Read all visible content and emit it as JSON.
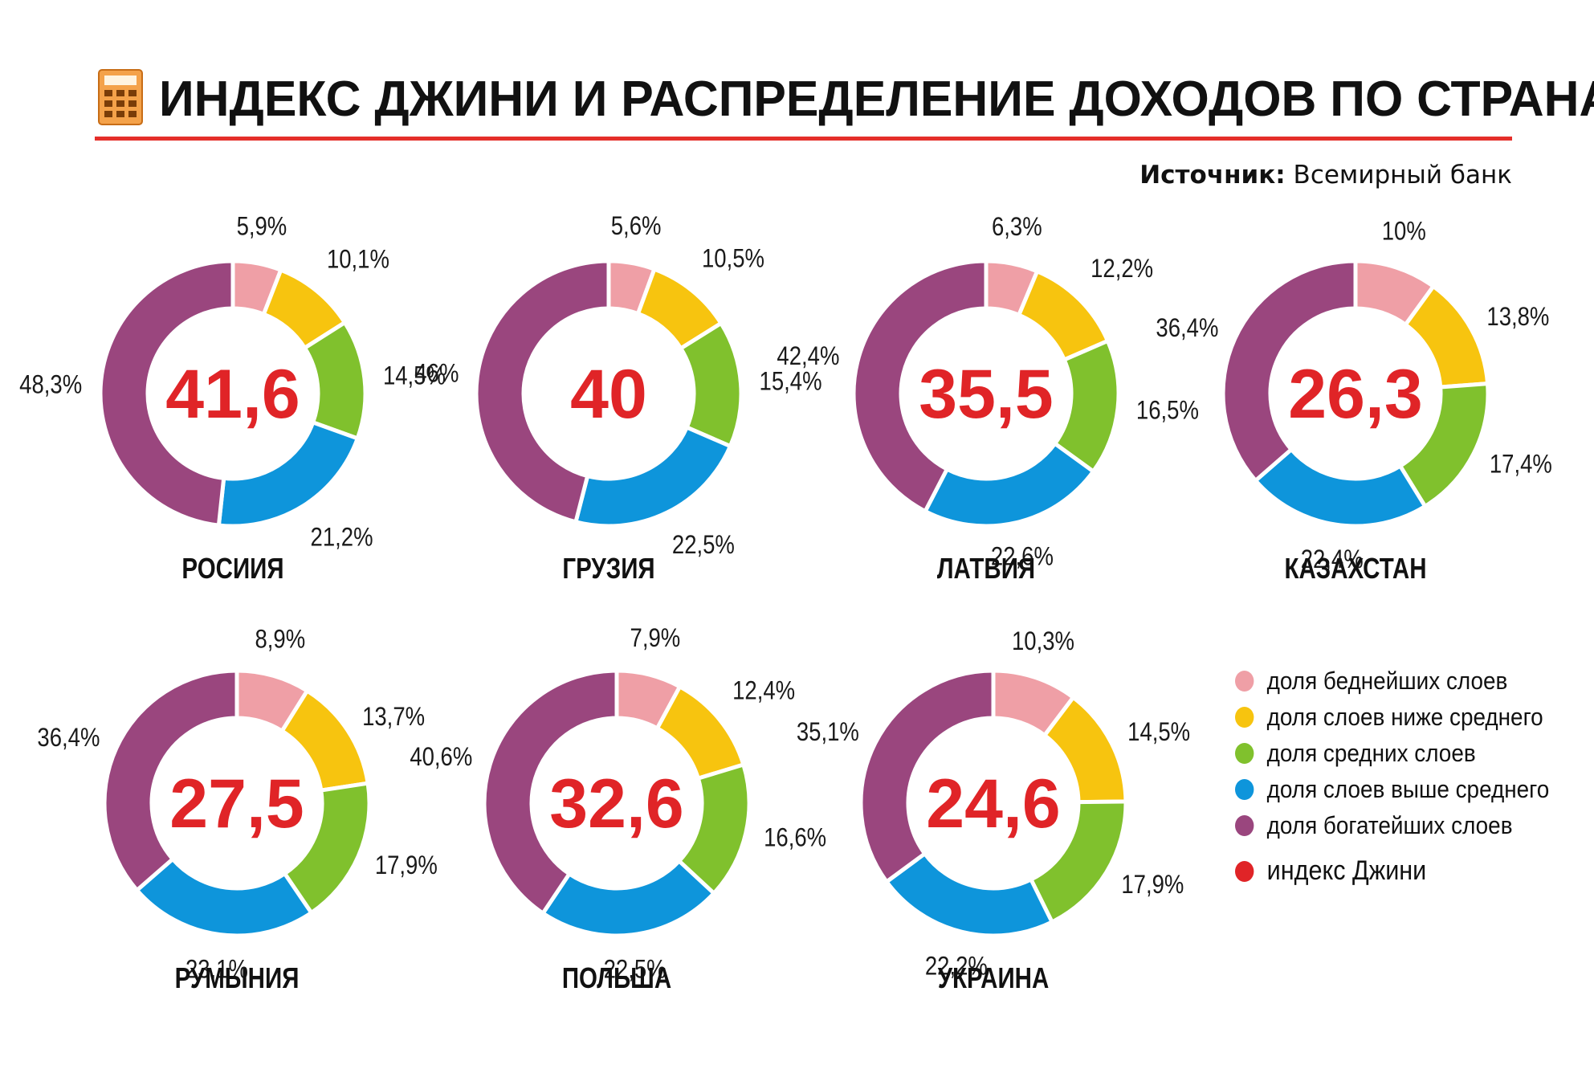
{
  "title": "ИНДЕКС ДЖИНИ И РАСПРЕДЕЛЕНИЕ ДОХОДОВ ПО СТРАНАМ",
  "source": {
    "label": "Источник:",
    "value": "Всемирный банк"
  },
  "colors": {
    "poorest": "#ef9fa6",
    "lower_middle": "#f7c40f",
    "middle": "#80c12d",
    "upper_middle": "#0e95db",
    "richest": "#9a467e",
    "gini": "#e02427"
  },
  "legend": {
    "items": [
      {
        "key": "poorest",
        "label": "доля беднейших слоев"
      },
      {
        "key": "lower_middle",
        "label": "доля слоев ниже среднего"
      },
      {
        "key": "middle",
        "label": "доля средних слоев"
      },
      {
        "key": "upper_middle",
        "label": "доля слоев выше среднего"
      },
      {
        "key": "richest",
        "label": "доля богатейших слоев"
      }
    ],
    "gini_label": "индекс Джини"
  },
  "chart_data": [
    {
      "type": "pie",
      "title": "РОСИИЯ",
      "gini": "41,6",
      "segments": [
        "poorest",
        "lower_middle",
        "middle",
        "upper_middle",
        "richest"
      ],
      "values": [
        5.9,
        10.1,
        14.5,
        21.2,
        48.3
      ],
      "labels": [
        "5,9%",
        "10,1%",
        "14,5%",
        "21,2%",
        "48,3%"
      ]
    },
    {
      "type": "pie",
      "title": "ГРУЗИЯ",
      "gini": "40",
      "segments": [
        "poorest",
        "lower_middle",
        "middle",
        "upper_middle",
        "richest"
      ],
      "values": [
        5.6,
        10.5,
        15.4,
        22.5,
        46
      ],
      "labels": [
        "5,6%",
        "10,5%",
        "15,4%",
        "22,5%",
        "46%"
      ]
    },
    {
      "type": "pie",
      "title": "ЛАТВИЯ",
      "gini": "35,5",
      "segments": [
        "poorest",
        "lower_middle",
        "middle",
        "upper_middle",
        "richest"
      ],
      "values": [
        6.3,
        12.2,
        16.5,
        22.6,
        42.4
      ],
      "labels": [
        "6,3%",
        "12,2%",
        "16,5%",
        "22,6%",
        "42,4%"
      ]
    },
    {
      "type": "pie",
      "title": "КАЗАХСТАН",
      "gini": "26,3",
      "segments": [
        "poorest",
        "lower_middle",
        "middle",
        "upper_middle",
        "richest"
      ],
      "values": [
        10,
        13.8,
        17.4,
        22.4,
        36.4
      ],
      "labels": [
        "10%",
        "13,8%",
        "17,4%",
        "22,4%",
        "36,4%"
      ]
    },
    {
      "type": "pie",
      "title": "РУМЫНИЯ",
      "gini": "27,5",
      "segments": [
        "poorest",
        "lower_middle",
        "middle",
        "upper_middle",
        "richest"
      ],
      "values": [
        8.9,
        13.7,
        17.9,
        23.1,
        36.4
      ],
      "labels": [
        "8,9%",
        "13,7%",
        "17,9%",
        "23,1%",
        "36,4%"
      ]
    },
    {
      "type": "pie",
      "title": "ПОЛЬША",
      "gini": "32,6",
      "segments": [
        "poorest",
        "lower_middle",
        "middle",
        "upper_middle",
        "richest"
      ],
      "values": [
        7.9,
        12.4,
        16.6,
        22.5,
        40.6
      ],
      "labels": [
        "7,9%",
        "12,4%",
        "16,6%",
        "22,5%",
        "40,6%"
      ]
    },
    {
      "type": "pie",
      "title": "УКРАИНА",
      "gini": "24,6",
      "segments": [
        "poorest",
        "lower_middle",
        "middle",
        "upper_middle",
        "richest"
      ],
      "values": [
        10.3,
        14.5,
        17.9,
        22.2,
        35.1
      ],
      "labels": [
        "10,3%",
        "14,5%",
        "17,9%",
        "22,2%",
        "35,1%"
      ]
    }
  ]
}
